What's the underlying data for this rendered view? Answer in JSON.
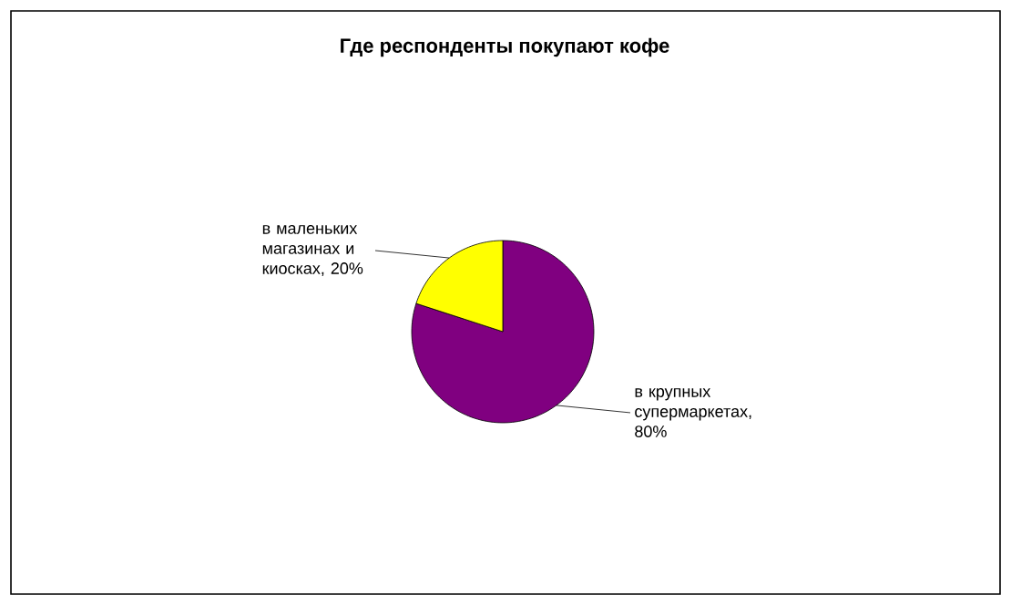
{
  "chart_data": {
    "type": "pie",
    "title": "Где респонденты покупают кофе",
    "categories": [
      "в крупных супермаркетах, 80%",
      "в маленьких магазинах и киосках, 20%"
    ],
    "values": [
      80,
      20
    ],
    "colors": [
      "#800080",
      "#ffff00"
    ]
  }
}
